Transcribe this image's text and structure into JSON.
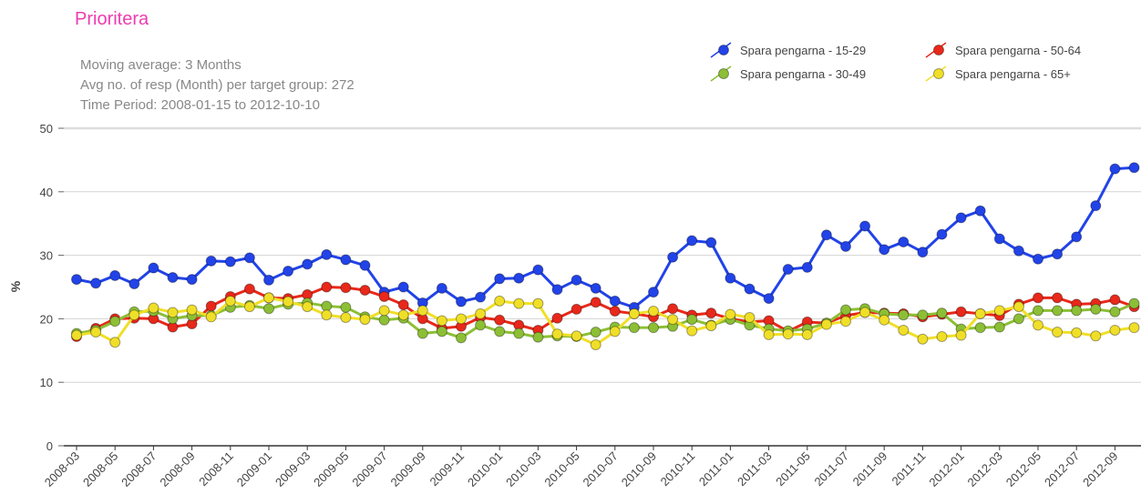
{
  "chart_data": {
    "type": "line",
    "title": "Prioritera",
    "subtitle": [
      "Moving average: 3 Months",
      "Avg no. of resp (Month) per target group: 272",
      "Time Period: 2008-01-15 to 2012-10-10"
    ],
    "y_label": "%",
    "categories": [
      "2008-03",
      null,
      "2008-05",
      null,
      "2008-07",
      null,
      "2008-09",
      null,
      "2008-11",
      null,
      "2009-01",
      null,
      "2009-03",
      null,
      "2009-05",
      null,
      "2009-07",
      null,
      "2009-09",
      null,
      "2009-11",
      null,
      "2010-01",
      null,
      "2010-03",
      null,
      "2010-05",
      null,
      "2010-07",
      null,
      "2010-09",
      null,
      "2010-11",
      null,
      "2011-01",
      null,
      "2011-03",
      null,
      "2011-05",
      null,
      "2011-07",
      null,
      "2011-09",
      null,
      "2011-11",
      null,
      "2012-01",
      null,
      "2012-03",
      null,
      "2012-05",
      null,
      "2012-07",
      null,
      "2012-09",
      null
    ],
    "ylim": [
      0,
      50
    ],
    "yticks": [
      0,
      10,
      20,
      30,
      40,
      50
    ],
    "grid": true,
    "legend": "top-right",
    "series": [
      {
        "name": "Spara pengarna - 15-29",
        "color": "#2143e8",
        "values": [
          26.2,
          25.6,
          26.8,
          25.5,
          28.0,
          26.5,
          26.2,
          29.1,
          29.0,
          29.6,
          26.1,
          27.5,
          28.6,
          30.1,
          29.3,
          28.4,
          24.2,
          25.0,
          22.5,
          24.8,
          22.7,
          23.4,
          26.3,
          26.4,
          27.7,
          24.6,
          26.1,
          24.8,
          22.8,
          21.8,
          24.2,
          29.7,
          32.3,
          32.0,
          26.4,
          24.7,
          23.2,
          27.8,
          28.1,
          33.2,
          31.4,
          34.6,
          30.9,
          32.1,
          30.5,
          33.3,
          35.9,
          37.0,
          32.6,
          30.7,
          29.4,
          30.2,
          32.9,
          37.8,
          43.6,
          43.8
        ]
      },
      {
        "name": "Spara pengarna - 50-64",
        "color": "#e8281a",
        "values": [
          17.2,
          18.5,
          20.0,
          20.1,
          20.0,
          18.7,
          19.2,
          22.0,
          23.5,
          24.7,
          23.3,
          23.2,
          23.8,
          25.0,
          24.9,
          24.5,
          23.5,
          22.2,
          20.0,
          18.5,
          18.8,
          20.2,
          19.8,
          19.0,
          18.2,
          20.1,
          21.5,
          22.6,
          21.2,
          20.8,
          20.3,
          21.6,
          20.6,
          20.9,
          20.0,
          19.5,
          19.7,
          18.0,
          19.5,
          19.3,
          20.5,
          21.0,
          20.9,
          20.8,
          20.3,
          20.7,
          21.1,
          20.8,
          20.5,
          22.3,
          23.3,
          23.3,
          22.3,
          22.4,
          23.0,
          21.9
        ]
      },
      {
        "name": "Spara pengarna - 30-49",
        "color": "#8cbf35",
        "values": [
          17.7,
          18.2,
          19.6,
          21.1,
          21.2,
          20.0,
          20.5,
          20.5,
          21.8,
          22.1,
          21.6,
          22.3,
          22.5,
          22.0,
          21.8,
          20.3,
          19.8,
          20.1,
          17.7,
          18.0,
          17.0,
          19.0,
          18.0,
          17.7,
          17.1,
          17.3,
          17.2,
          17.9,
          18.7,
          18.6,
          18.6,
          18.8,
          19.9,
          19.0,
          19.9,
          19.0,
          18.4,
          18.1,
          18.4,
          19.3,
          21.4,
          21.6,
          20.8,
          20.6,
          20.6,
          20.9,
          18.4,
          18.6,
          18.7,
          20.0,
          21.3,
          21.3,
          21.3,
          21.5,
          21.1,
          22.4
        ]
      },
      {
        "name": "Spara pengarna - 65+",
        "color": "#f0df28",
        "values": [
          17.4,
          17.9,
          16.3,
          20.6,
          21.7,
          21.0,
          21.4,
          20.3,
          22.8,
          21.9,
          23.3,
          22.7,
          21.9,
          20.6,
          20.2,
          19.9,
          21.3,
          20.6,
          21.3,
          19.7,
          20.0,
          20.8,
          22.8,
          22.4,
          22.4,
          17.6,
          17.3,
          15.9,
          18.0,
          20.8,
          21.2,
          19.9,
          18.1,
          18.9,
          20.7,
          20.2,
          17.5,
          17.6,
          17.5,
          19.1,
          19.6,
          21.0,
          19.8,
          18.2,
          16.8,
          17.2,
          17.4,
          20.8,
          21.3,
          21.9,
          19.0,
          17.9,
          17.8,
          17.3,
          18.2,
          18.6
        ]
      }
    ]
  }
}
